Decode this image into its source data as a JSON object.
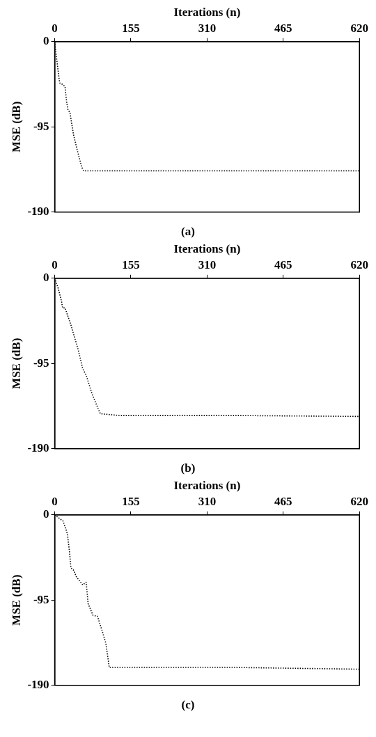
{
  "chart_data": [
    {
      "type": "line",
      "xlabel": "Iterations (n)",
      "ylabel": "MSE (dB)",
      "annotations": [
        "(a)"
      ],
      "xlim": [
        0,
        620
      ],
      "xticks": [
        0,
        155,
        310,
        465,
        620
      ],
      "ylim": [
        -190,
        0
      ],
      "yticks": [
        0,
        -95,
        -190
      ],
      "grid": false,
      "legend": false,
      "marker": "none",
      "line_style": "dotted",
      "series": [
        {
          "color": "#000000",
          "x": [
            0,
            3,
            10,
            14,
            21,
            24,
            27,
            31,
            38,
            45,
            55,
            59,
            279,
            619
          ],
          "values": [
            0,
            -15,
            -46,
            -47,
            -50,
            -66,
            -76,
            -79,
            -103,
            -119,
            -140,
            -144,
            -144,
            -144
          ]
        }
      ]
    },
    {
      "type": "line",
      "xlabel": "Iterations (n)",
      "ylabel": "MSE (dB)",
      "annotations": [
        "(b)"
      ],
      "xlim": [
        0,
        620
      ],
      "xticks": [
        0,
        155,
        310,
        465,
        620
      ],
      "ylim": [
        -190,
        0
      ],
      "yticks": [
        0,
        -95,
        -190
      ],
      "grid": false,
      "legend": false,
      "marker": "none",
      "line_style": "dotted",
      "series": [
        {
          "color": "#000000",
          "x": [
            0,
            7,
            14,
            16,
            21,
            33,
            48,
            57,
            64,
            76,
            88,
            93,
            133,
            365,
            620
          ],
          "values": [
            0,
            -11,
            -26,
            -33,
            -33,
            -52,
            -80,
            -101,
            -108,
            -129,
            -145,
            -151,
            -153,
            -153,
            -154
          ]
        }
      ]
    },
    {
      "type": "line",
      "xlabel": "Iterations (n)",
      "ylabel": "MSE (dB)",
      "annotations": [
        "(c)"
      ],
      "xlim": [
        0,
        620
      ],
      "xticks": [
        0,
        155,
        310,
        465,
        620
      ],
      "ylim": [
        -190,
        0
      ],
      "yticks": [
        0,
        -95,
        -190
      ],
      "grid": false,
      "legend": false,
      "marker": "none",
      "line_style": "dotted",
      "series": [
        {
          "color": "#000000",
          "x": [
            0,
            17,
            24,
            26,
            30,
            33,
            39,
            44,
            57,
            64,
            68,
            78,
            87,
            97,
            104,
            111,
            362,
            620
          ],
          "values": [
            0,
            -7,
            -18,
            -22,
            -41,
            -59,
            -62,
            -69,
            -78,
            -75,
            -99,
            -112,
            -113,
            -130,
            -143,
            -170,
            -170,
            -172
          ]
        }
      ]
    }
  ]
}
